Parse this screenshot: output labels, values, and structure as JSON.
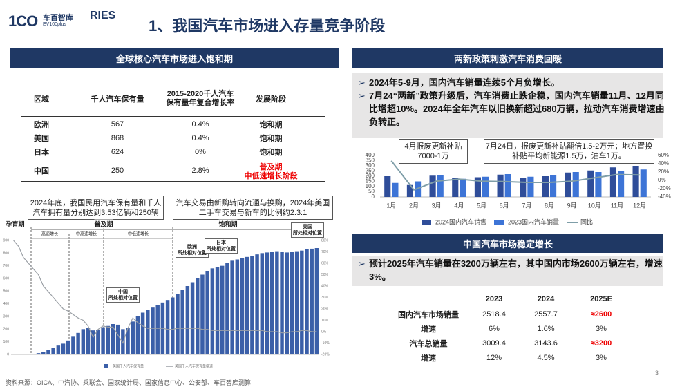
{
  "header": {
    "brand1": "车百智库",
    "brand1_sub": "EV100plus",
    "brand2": "RIES",
    "title": "1、我国汽车市场进入存量竞争阶段"
  },
  "left": {
    "section_title": "全球核心汽车市场进入饱和期",
    "table": {
      "columns": [
        "区域",
        "千人汽车保有量",
        "2015-2020千人汽车保有量年复合增长率",
        "发展阶段"
      ],
      "rows": [
        {
          "region": "欧洲",
          "density": "567",
          "cagr": "0.4%",
          "stage": [
            "饱和期"
          ]
        },
        {
          "region": "美国",
          "density": "868",
          "cagr": "0.4%",
          "stage": [
            "饱和期"
          ]
        },
        {
          "region": "日本",
          "density": "624",
          "cagr": "0%",
          "stage": [
            "饱和期"
          ]
        },
        {
          "region": "中国",
          "density": "250",
          "cagr": "2.8%",
          "stage": [
            "普及期",
            "中低速增长阶段"
          ]
        }
      ]
    },
    "callouts": [
      "2024年底，我国民用汽车保有量和千人汽车拥有量分别达到3.53亿辆和250辆",
      "汽车交易由新购转向流通与换购，2024年美国二手车交易与新车的比例约2.3:1"
    ]
  },
  "chart_data": [
    {
      "type": "bar",
      "phases": [
        "孕育期",
        "普及期",
        "饱和期"
      ],
      "stages": [
        "高速增长",
        "中高速增长",
        "中低速增长"
      ],
      "markers": [
        [
          "欧洲",
          "所处相对位置"
        ],
        [
          "日本",
          "所处相对位置"
        ],
        [
          "中国",
          "所处相对位置"
        ],
        [
          "美国",
          "所处相对位置"
        ]
      ],
      "ylim": [
        0,
        900
      ],
      "yticks": [
        0,
        100,
        200,
        300,
        400,
        500,
        600,
        700,
        800,
        900
      ],
      "y2lim": [
        -20,
        80
      ],
      "y2ticks": [
        {
          "value": -20,
          "label": "-20%"
        },
        {
          "value": -10,
          "label": "-10%"
        },
        {
          "value": 0,
          "label": "0%"
        },
        {
          "value": 10,
          "label": "10%"
        },
        {
          "value": 20,
          "label": "20%"
        },
        {
          "value": 30,
          "label": "30%"
        },
        {
          "value": 40,
          "label": "40%"
        },
        {
          "value": 50,
          "label": "50%"
        },
        {
          "value": 60,
          "label": "60%"
        },
        {
          "value": 70,
          "label": "70%"
        },
        {
          "value": 80,
          "label": "80%"
        }
      ],
      "series": [
        {
          "name": "美国千人汽车保有量",
          "color": "#3b5fa8",
          "values": [
            0,
            0,
            1,
            2,
            5,
            10,
            20,
            35,
            50,
            70,
            85,
            110,
            140,
            170,
            200,
            210,
            190,
            195,
            215,
            225,
            240,
            235,
            200,
            210,
            260,
            300,
            330,
            350,
            370,
            390,
            410,
            430,
            450,
            480,
            510,
            540,
            570,
            600,
            630,
            660,
            680,
            690,
            700,
            720,
            740,
            750,
            760,
            770,
            780,
            790,
            800,
            805,
            810,
            815,
            810,
            805,
            810,
            815,
            820,
            830,
            835,
            840
          ]
        },
        {
          "name": "美国千人汽车保有量增速",
          "color": "#9a9fa5",
          "axis": "y2",
          "values": [
            80,
            75,
            65,
            60,
            55,
            50,
            40,
            35,
            30,
            25,
            20,
            18,
            15,
            12,
            10,
            5,
            -5,
            2,
            5,
            4,
            4,
            -3,
            -10,
            3,
            12,
            8,
            5,
            3,
            3,
            3,
            3,
            2,
            2,
            3,
            3,
            3,
            3,
            3,
            2,
            2,
            1,
            1,
            1,
            1,
            1,
            1,
            1,
            1,
            1,
            1,
            1,
            0,
            0,
            0,
            -1,
            -1,
            0,
            0,
            1,
            1,
            0,
            0
          ]
        }
      ]
    },
    {
      "type": "bar",
      "categories": [
        "1月",
        "2月",
        "3月",
        "4月",
        "5月",
        "6月",
        "7月",
        "8月",
        "9月",
        "10月",
        "11月",
        "12月"
      ],
      "annotations": [
        "4月报废更新补贴7000-1万",
        "7月24日，报废更新补贴翻倍1.5-2万元；地方置换补贴平均新能源1.5万，油车1万。"
      ],
      "ylim": [
        0,
        400
      ],
      "yticks": [
        0,
        50,
        100,
        150,
        200,
        250,
        300,
        350,
        400
      ],
      "y2lim": [
        -40,
        60
      ],
      "y2ticks": [
        {
          "value": -40,
          "label": "-40%"
        },
        {
          "value": -20,
          "label": "-20%"
        },
        {
          "value": 0,
          "label": "0%"
        },
        {
          "value": 20,
          "label": "20%"
        },
        {
          "value": 40,
          "label": "40%"
        },
        {
          "value": 60,
          "label": "60%"
        }
      ],
      "series": [
        {
          "name": "2024国内汽车销售",
          "color": "#2f4d99",
          "values": [
            200,
            115,
            205,
            180,
            190,
            215,
            185,
            200,
            235,
            255,
            285,
            300
          ]
        },
        {
          "name": "2023国内汽车销量",
          "color": "#3d74d6",
          "values": [
            135,
            150,
            210,
            175,
            195,
            220,
            195,
            210,
            240,
            240,
            250,
            265
          ]
        },
        {
          "name": "同比",
          "color": "#7f9ea8",
          "axis": "y2",
          "values": [
            47,
            -23,
            -2,
            3,
            -2,
            -3,
            -5,
            -5,
            -2,
            6,
            14,
            13
          ]
        }
      ]
    }
  ],
  "right": {
    "section1_title": "两新政策刺激汽车消费回暖",
    "bullets1": [
      "2024年5-9月，国内汽车销量连续5个月负增长。",
      "7月24“两新”政策升级后，汽车消费止跌企稳，国内汽车销量11月、12月同比增超10%。2024年全年汽车以旧换新超过680万辆，拉动汽车消费增速由负转正。"
    ],
    "section2_title": "中国汽车市场稳定增长",
    "bullets2": [
      "预计2025年汽车销量在3200万辆左右，其中国内市场2600万辆左右，增速3%。"
    ],
    "table": {
      "columns": [
        "2023",
        "2024",
        "2025E"
      ],
      "rows": [
        [
          "国内汽车市场销量",
          "2518.4",
          "2557.7",
          "≈2600"
        ],
        [
          "增速",
          "6%",
          "1.6%",
          "3%"
        ],
        [
          "汽车总销量",
          "3009.4",
          "3143.6",
          "≈3200"
        ],
        [
          "增速",
          "12%",
          "4.5%",
          "3%"
        ]
      ]
    }
  },
  "source": "资料来源：OICA、中汽协、乘联会、国家统计局、国家信息中心、公安部、车百智库测算",
  "page_number": "3"
}
